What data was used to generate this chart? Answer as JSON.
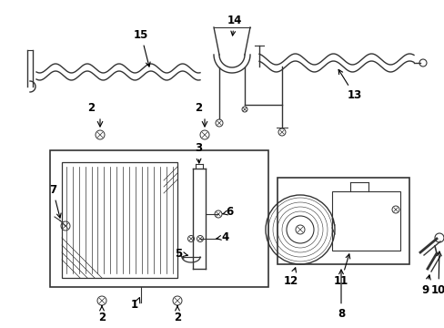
{
  "bg_color": "#ffffff",
  "line_color": "#333333",
  "text_color": "#000000",
  "figsize": [
    4.89,
    3.6
  ],
  "dpi": 100
}
